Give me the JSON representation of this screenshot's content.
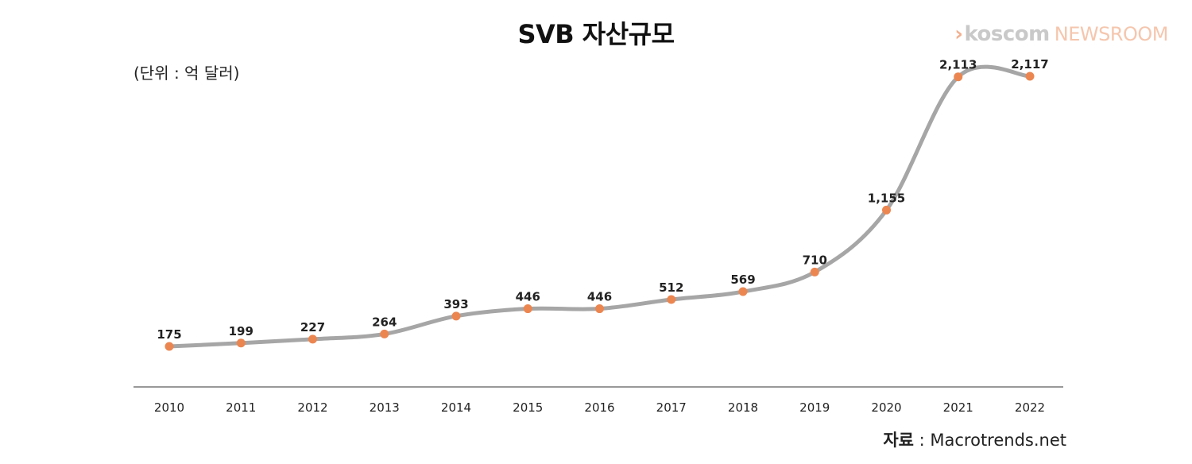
{
  "header": {
    "title": "SVB 자산규모",
    "unit": "(단위 : 억 달러)"
  },
  "logo": {
    "chevron": "›",
    "brand": "koscom",
    "sub": "NEWSROOM"
  },
  "source": {
    "label": "자료",
    "separator": " : ",
    "value": "Macrotrends.net"
  },
  "colors": {
    "line": "#a6a6a6",
    "marker": "#ec8651",
    "axis": "#999999"
  },
  "chart_data": {
    "type": "line",
    "title": "SVB 자산규모",
    "xlabel": "",
    "ylabel": "",
    "unit_note": "(단위 : 억 달러)",
    "categories": [
      "2010",
      "2011",
      "2012",
      "2013",
      "2014",
      "2015",
      "2016",
      "2017",
      "2018",
      "2019",
      "2020",
      "2021",
      "2022"
    ],
    "values": [
      175,
      199,
      227,
      264,
      393,
      446,
      446,
      512,
      569,
      710,
      1155,
      2113,
      2117
    ],
    "value_labels": [
      "175",
      "199",
      "227",
      "264",
      "393",
      "446",
      "446",
      "512",
      "569",
      "710",
      "1,155",
      "2,113",
      "2,117"
    ],
    "smooth": true,
    "grid": false
  }
}
